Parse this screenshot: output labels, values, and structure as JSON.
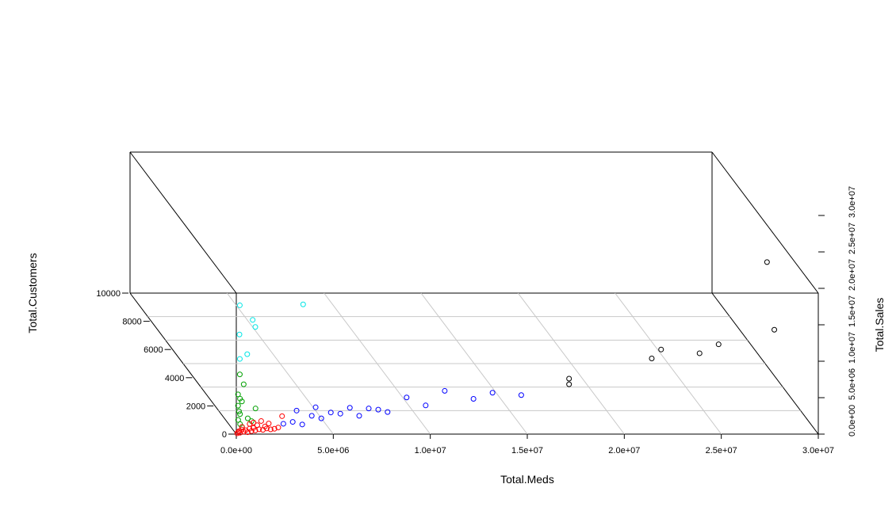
{
  "chart_data": {
    "type": "scatter",
    "xlabel": "Total.Meds",
    "ylabel": "Total.Sales",
    "zlabel": "Total.Customers",
    "x_ticks": [
      "0.0e+00",
      "5.0e+06",
      "1.0e+07",
      "1.5e+07",
      "2.0e+07",
      "2.5e+07",
      "3.0e+07"
    ],
    "y_ticks": [
      "0.0e+00",
      "5.0e+06",
      "1.0e+07",
      "1.5e+07",
      "2.0e+07",
      "2.5e+07",
      "3.0e+07"
    ],
    "z_ticks": [
      "0",
      "2000",
      "4000",
      "6000",
      "8000",
      "10000"
    ],
    "xlim": [
      0,
      30000000
    ],
    "ylim": [
      0,
      30000000
    ],
    "zlim": [
      0,
      10000
    ],
    "colors": {
      "cyan": "#00e5e5",
      "green": "#00a000",
      "red": "#ff0000",
      "blue": "#0000ff",
      "black": "#000000"
    },
    "series": [
      {
        "color": "#00e5e5",
        "points": [
          {
            "x": 1200000,
            "y": 1200000,
            "z": 7200
          },
          {
            "x": 200000,
            "y": 100000,
            "z": 9100
          },
          {
            "x": 3500000,
            "y": 300000,
            "z": 9100
          },
          {
            "x": 900000,
            "y": 300000,
            "z": 8000
          },
          {
            "x": 200000,
            "y": 200000,
            "z": 7000
          },
          {
            "x": 600000,
            "y": 200000,
            "z": 5600
          },
          {
            "x": 200000,
            "y": 100000,
            "z": 5300
          }
        ]
      },
      {
        "color": "#00a000",
        "points": [
          {
            "x": 200000,
            "y": 100000,
            "z": 4200
          },
          {
            "x": 400000,
            "y": 100000,
            "z": 3500
          },
          {
            "x": 100000,
            "y": 50000,
            "z": 2800
          },
          {
            "x": 200000,
            "y": 50000,
            "z": 2500
          },
          {
            "x": 300000,
            "y": 50000,
            "z": 2300
          },
          {
            "x": 1000000,
            "y": 50000,
            "z": 1800
          },
          {
            "x": 100000,
            "y": 50000,
            "z": 2000
          },
          {
            "x": 150000,
            "y": 50000,
            "z": 1600
          },
          {
            "x": 200000,
            "y": 50000,
            "z": 1400
          },
          {
            "x": 600000,
            "y": 50000,
            "z": 1100
          },
          {
            "x": 800000,
            "y": 50000,
            "z": 900
          },
          {
            "x": 100000,
            "y": 20000,
            "z": 1000
          },
          {
            "x": 200000,
            "y": 20000,
            "z": 700
          },
          {
            "x": 300000,
            "y": 20000,
            "z": 500
          }
        ]
      },
      {
        "color": "#ff0000",
        "points": [
          {
            "x": 50000,
            "y": 20000,
            "z": 50
          },
          {
            "x": 100000,
            "y": 30000,
            "z": 120
          },
          {
            "x": 150000,
            "y": 40000,
            "z": 200
          },
          {
            "x": 200000,
            "y": 50000,
            "z": 80
          },
          {
            "x": 300000,
            "y": 60000,
            "z": 300
          },
          {
            "x": 400000,
            "y": 70000,
            "z": 150
          },
          {
            "x": 500000,
            "y": 80000,
            "z": 250
          },
          {
            "x": 600000,
            "y": 90000,
            "z": 100
          },
          {
            "x": 700000,
            "y": 100000,
            "z": 350
          },
          {
            "x": 800000,
            "y": 100000,
            "z": 180
          },
          {
            "x": 900000,
            "y": 110000,
            "z": 400
          },
          {
            "x": 1000000,
            "y": 120000,
            "z": 220
          },
          {
            "x": 1200000,
            "y": 130000,
            "z": 300
          },
          {
            "x": 1400000,
            "y": 150000,
            "z": 250
          },
          {
            "x": 1600000,
            "y": 160000,
            "z": 350
          },
          {
            "x": 1800000,
            "y": 170000,
            "z": 280
          },
          {
            "x": 2000000,
            "y": 180000,
            "z": 320
          },
          {
            "x": 2200000,
            "y": 200000,
            "z": 400
          },
          {
            "x": 1100000,
            "y": 100000,
            "z": 600
          },
          {
            "x": 1500000,
            "y": 120000,
            "z": 500
          },
          {
            "x": 700000,
            "y": 60000,
            "z": 700
          },
          {
            "x": 2400000,
            "y": 220000,
            "z": 1200
          },
          {
            "x": 1300000,
            "y": 90000,
            "z": 900
          },
          {
            "x": 300000,
            "y": 20000,
            "z": 500
          },
          {
            "x": 900000,
            "y": 70000,
            "z": 800
          },
          {
            "x": 1700000,
            "y": 150000,
            "z": 700
          }
        ]
      },
      {
        "color": "#0000ff",
        "points": [
          {
            "x": 2500000,
            "y": 400000,
            "z": 600
          },
          {
            "x": 3000000,
            "y": 500000,
            "z": 700
          },
          {
            "x": 3500000,
            "y": 550000,
            "z": 500
          },
          {
            "x": 4000000,
            "y": 600000,
            "z": 1100
          },
          {
            "x": 4500000,
            "y": 650000,
            "z": 900
          },
          {
            "x": 5000000,
            "y": 700000,
            "z": 1300
          },
          {
            "x": 5500000,
            "y": 750000,
            "z": 1200
          },
          {
            "x": 6000000,
            "y": 800000,
            "z": 1600
          },
          {
            "x": 6500000,
            "y": 900000,
            "z": 1000
          },
          {
            "x": 7000000,
            "y": 950000,
            "z": 1500
          },
          {
            "x": 7500000,
            "y": 1000000,
            "z": 1400
          },
          {
            "x": 8000000,
            "y": 1100000,
            "z": 1200
          },
          {
            "x": 9000000,
            "y": 1200000,
            "z": 2200
          },
          {
            "x": 10000000,
            "y": 1300000,
            "z": 1600
          },
          {
            "x": 11000000,
            "y": 1400000,
            "z": 2600
          },
          {
            "x": 12500000,
            "y": 1500000,
            "z": 2000
          },
          {
            "x": 13500000,
            "y": 1600000,
            "z": 2400
          },
          {
            "x": 15000000,
            "y": 1700000,
            "z": 2200
          },
          {
            "x": 3200000,
            "y": 500000,
            "z": 1500
          },
          {
            "x": 4200000,
            "y": 600000,
            "z": 1700
          }
        ]
      },
      {
        "color": "#000000",
        "points": [
          {
            "x": 17500000,
            "y": 1900000,
            "z": 2900
          },
          {
            "x": 17500000,
            "y": 1900000,
            "z": 3300
          },
          {
            "x": 22000000,
            "y": 3200000,
            "z": 4300
          },
          {
            "x": 22500000,
            "y": 3300000,
            "z": 4900
          },
          {
            "x": 24500000,
            "y": 3400000,
            "z": 4600
          },
          {
            "x": 25500000,
            "y": 3500000,
            "z": 5200
          },
          {
            "x": 28500000,
            "y": 4200000,
            "z": 6000
          },
          {
            "x": 29000000,
            "y": 9000000,
            "z": 9200
          }
        ]
      }
    ]
  }
}
